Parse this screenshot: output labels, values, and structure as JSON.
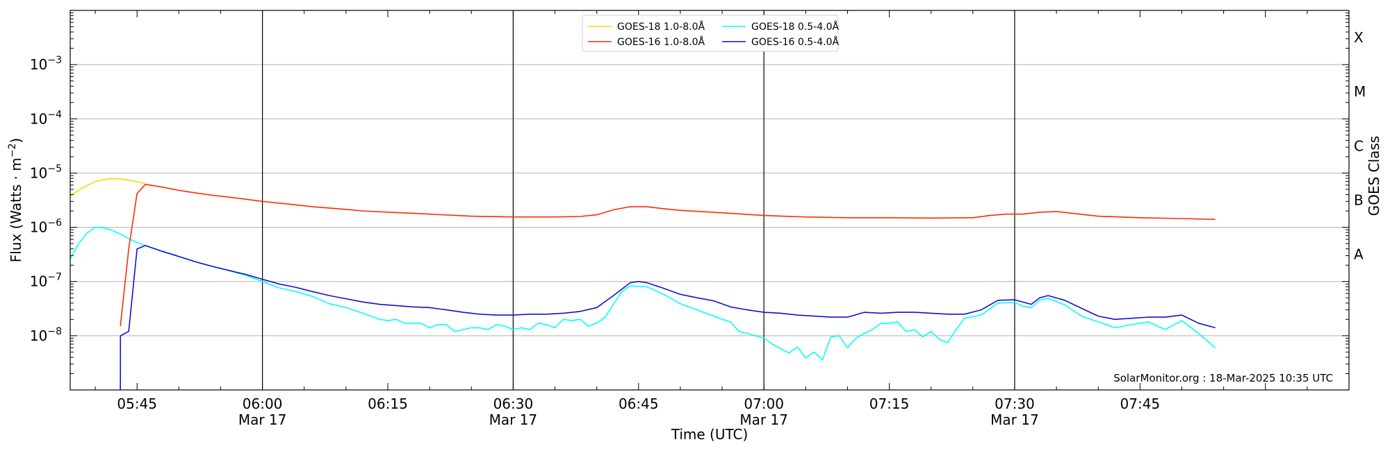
{
  "chart_data": {
    "type": "line",
    "title": "",
    "xlabel": "Time (UTC)",
    "ylabel": "Flux (Watts · m⁻²)",
    "y2label": "GOES Class",
    "yscale": "log",
    "xlim": [
      "05:37",
      "08:10"
    ],
    "ylim": [
      1e-09,
      0.01
    ],
    "grid": "horizontal",
    "legend_position": "top-center",
    "watermark": "SolarMonitor.org : 18-Mar-2025 10:35 UTC",
    "x_ticks": [
      {
        "time": "05:45",
        "label": "05:45",
        "sub": ""
      },
      {
        "time": "06:00",
        "label": "06:00",
        "sub": "Mar 17"
      },
      {
        "time": "06:15",
        "label": "06:15",
        "sub": ""
      },
      {
        "time": "06:30",
        "label": "06:30",
        "sub": "Mar 17"
      },
      {
        "time": "06:45",
        "label": "06:45",
        "sub": ""
      },
      {
        "time": "07:00",
        "label": "07:00",
        "sub": "Mar 17"
      },
      {
        "time": "07:15",
        "label": "07:15",
        "sub": ""
      },
      {
        "time": "07:30",
        "label": "07:30",
        "sub": "Mar 17"
      },
      {
        "time": "07:45",
        "label": "07:45",
        "sub": ""
      }
    ],
    "vertical_lines": [
      "06:00",
      "06:30",
      "07:00",
      "07:30"
    ],
    "y_ticks": [
      {
        "value": 1e-08,
        "base": "10",
        "exp": "−8"
      },
      {
        "value": 1e-07,
        "base": "10",
        "exp": "−7"
      },
      {
        "value": 1e-06,
        "base": "10",
        "exp": "−6"
      },
      {
        "value": 1e-05,
        "base": "10",
        "exp": "−5"
      },
      {
        "value": 0.0001,
        "base": "10",
        "exp": "−4"
      },
      {
        "value": 0.001,
        "base": "10",
        "exp": "−3"
      }
    ],
    "goes_classes": [
      {
        "label": "A",
        "value": 1e-07
      },
      {
        "label": "B",
        "value": 1e-06
      },
      {
        "label": "C",
        "value": 1e-05
      },
      {
        "label": "M",
        "value": 0.0001
      },
      {
        "label": "X",
        "value": 0.001
      }
    ],
    "series": [
      {
        "name": "GOES-18 1.0-8.0Å",
        "color": "#ffd700",
        "points": [
          [
            "05:37",
            3.8e-06
          ],
          [
            "05:38",
            4.8e-06
          ],
          [
            "05:39",
            5.9e-06
          ],
          [
            "05:40",
            6.9e-06
          ],
          [
            "05:41",
            7.6e-06
          ],
          [
            "05:42",
            7.9e-06
          ],
          [
            "05:43",
            7.8e-06
          ],
          [
            "05:44",
            7.4e-06
          ],
          [
            "05:45",
            6.9e-06
          ],
          [
            "05:46",
            6.4e-06
          ]
        ]
      },
      {
        "name": "GOES-18 0.5-4.0Å",
        "color": "#00ffff",
        "points": [
          [
            "05:37",
            2.6e-07
          ],
          [
            "05:38",
            5e-07
          ],
          [
            "05:39",
            7.8e-07
          ],
          [
            "05:40",
            1e-06
          ],
          [
            "05:41",
            9.8e-07
          ],
          [
            "05:42",
            8.8e-07
          ],
          [
            "05:43",
            7.5e-07
          ],
          [
            "05:44",
            6.2e-07
          ],
          [
            "05:45",
            5.2e-07
          ],
          [
            "05:46",
            4.6e-07
          ],
          [
            "05:48",
            3.6e-07
          ],
          [
            "05:50",
            2.9e-07
          ],
          [
            "05:52",
            2.3e-07
          ],
          [
            "05:54",
            1.9e-07
          ],
          [
            "05:56",
            1.6e-07
          ],
          [
            "05:58",
            1.3e-07
          ],
          [
            "06:00",
            1e-07
          ],
          [
            "06:02",
            7.6e-08
          ],
          [
            "06:04",
            6.5e-08
          ],
          [
            "06:06",
            5.3e-08
          ],
          [
            "06:08",
            3.9e-08
          ],
          [
            "06:10",
            3.3e-08
          ],
          [
            "06:12",
            2.6e-08
          ],
          [
            "06:14",
            2e-08
          ],
          [
            "06:15",
            1.9e-08
          ],
          [
            "06:16",
            2e-08
          ],
          [
            "06:17",
            1.7e-08
          ],
          [
            "06:19",
            1.7e-08
          ],
          [
            "06:20",
            1.4e-08
          ],
          [
            "06:21",
            1.6e-08
          ],
          [
            "06:22",
            1.6e-08
          ],
          [
            "06:23",
            1.2e-08
          ],
          [
            "06:24",
            1.3e-08
          ],
          [
            "06:25",
            1.4e-08
          ],
          [
            "06:26",
            1.4e-08
          ],
          [
            "06:27",
            1.3e-08
          ],
          [
            "06:28",
            1.6e-08
          ],
          [
            "06:29",
            1.5e-08
          ],
          [
            "06:30",
            1.3e-08
          ],
          [
            "06:31",
            1.4e-08
          ],
          [
            "06:32",
            1.3e-08
          ],
          [
            "06:33",
            1.7e-08
          ],
          [
            "06:34",
            1.6e-08
          ],
          [
            "06:35",
            1.4e-08
          ],
          [
            "06:36",
            2e-08
          ],
          [
            "06:37",
            1.9e-08
          ],
          [
            "06:38",
            2e-08
          ],
          [
            "06:39",
            1.5e-08
          ],
          [
            "06:40",
            1.7e-08
          ],
          [
            "06:41",
            2.2e-08
          ],
          [
            "06:42",
            3.8e-08
          ],
          [
            "06:43",
            6.5e-08
          ],
          [
            "06:44",
            8.3e-08
          ],
          [
            "06:46",
            8e-08
          ],
          [
            "06:48",
            5.8e-08
          ],
          [
            "06:50",
            3.9e-08
          ],
          [
            "06:52",
            3e-08
          ],
          [
            "06:54",
            2.3e-08
          ],
          [
            "06:55",
            2e-08
          ],
          [
            "06:56",
            1.8e-08
          ],
          [
            "06:57",
            1.2e-08
          ],
          [
            "06:58",
            1.1e-08
          ],
          [
            "07:00",
            9e-09
          ],
          [
            "07:01",
            7e-09
          ],
          [
            "07:02",
            5.8e-09
          ],
          [
            "07:03",
            4.8e-09
          ],
          [
            "07:04",
            6.2e-09
          ],
          [
            "07:05",
            3.9e-09
          ],
          [
            "07:06",
            5e-09
          ],
          [
            "07:07",
            3.6e-09
          ],
          [
            "07:08",
            9.5e-09
          ],
          [
            "07:09",
            1e-08
          ],
          [
            "07:10",
            6e-09
          ],
          [
            "07:11",
            9e-09
          ],
          [
            "07:12",
            1.1e-08
          ],
          [
            "07:13",
            1.3e-08
          ],
          [
            "07:14",
            1.7e-08
          ],
          [
            "07:15",
            1.7e-08
          ],
          [
            "07:16",
            1.8e-08
          ],
          [
            "07:17",
            1.2e-08
          ],
          [
            "07:18",
            1.3e-08
          ],
          [
            "07:19",
            9.5e-09
          ],
          [
            "07:20",
            1.2e-08
          ],
          [
            "07:21",
            8.5e-09
          ],
          [
            "07:22",
            7.5e-09
          ],
          [
            "07:23",
            1.3e-08
          ],
          [
            "07:24",
            2.1e-08
          ],
          [
            "07:26",
            2.4e-08
          ],
          [
            "07:28",
            4e-08
          ],
          [
            "07:30",
            4.1e-08
          ],
          [
            "07:31",
            3.5e-08
          ],
          [
            "07:32",
            3.3e-08
          ],
          [
            "07:33",
            4.5e-08
          ],
          [
            "07:34",
            4.9e-08
          ],
          [
            "07:36",
            3.7e-08
          ],
          [
            "07:38",
            2.3e-08
          ],
          [
            "07:40",
            1.8e-08
          ],
          [
            "07:42",
            1.4e-08
          ],
          [
            "07:44",
            1.6e-08
          ],
          [
            "07:46",
            1.8e-08
          ],
          [
            "07:48",
            1.3e-08
          ],
          [
            "07:50",
            1.9e-08
          ],
          [
            "07:52",
            1.1e-08
          ],
          [
            "07:54",
            6e-09
          ]
        ]
      },
      {
        "name": "GOES-16 1.0-8.0Å",
        "color": "#ff2a00",
        "points": [
          [
            "05:43",
            1.5e-08
          ],
          [
            "05:44",
            4e-07
          ],
          [
            "05:45",
            4.2e-06
          ],
          [
            "05:46",
            6.2e-06
          ],
          [
            "05:48",
            5.5e-06
          ],
          [
            "05:50",
            4.8e-06
          ],
          [
            "05:52",
            4.3e-06
          ],
          [
            "05:54",
            3.9e-06
          ],
          [
            "05:56",
            3.6e-06
          ],
          [
            "05:58",
            3.3e-06
          ],
          [
            "06:00",
            3e-06
          ],
          [
            "06:03",
            2.7e-06
          ],
          [
            "06:06",
            2.4e-06
          ],
          [
            "06:09",
            2.2e-06
          ],
          [
            "06:12",
            2e-06
          ],
          [
            "06:15",
            1.9e-06
          ],
          [
            "06:20",
            1.75e-06
          ],
          [
            "06:25",
            1.6e-06
          ],
          [
            "06:30",
            1.55e-06
          ],
          [
            "06:35",
            1.55e-06
          ],
          [
            "06:38",
            1.58e-06
          ],
          [
            "06:40",
            1.7e-06
          ],
          [
            "06:42",
            2.1e-06
          ],
          [
            "06:44",
            2.4e-06
          ],
          [
            "06:46",
            2.4e-06
          ],
          [
            "06:48",
            2.2e-06
          ],
          [
            "06:50",
            2.05e-06
          ],
          [
            "06:55",
            1.85e-06
          ],
          [
            "07:00",
            1.65e-06
          ],
          [
            "07:05",
            1.55e-06
          ],
          [
            "07:10",
            1.5e-06
          ],
          [
            "07:15",
            1.5e-06
          ],
          [
            "07:20",
            1.48e-06
          ],
          [
            "07:25",
            1.5e-06
          ],
          [
            "07:27",
            1.65e-06
          ],
          [
            "07:29",
            1.75e-06
          ],
          [
            "07:31",
            1.75e-06
          ],
          [
            "07:33",
            1.9e-06
          ],
          [
            "07:35",
            1.95e-06
          ],
          [
            "07:37",
            1.8e-06
          ],
          [
            "07:40",
            1.6e-06
          ],
          [
            "07:45",
            1.5e-06
          ],
          [
            "07:50",
            1.45e-06
          ],
          [
            "07:54",
            1.4e-06
          ]
        ]
      },
      {
        "name": "GOES-16 0.5-4.0Å",
        "color": "#1010cc",
        "points": [
          [
            "05:43",
            1e-09
          ],
          [
            "05:43.01",
            1e-08
          ],
          [
            "05:44",
            1.2e-08
          ],
          [
            "05:45",
            4e-07
          ],
          [
            "05:46",
            4.6e-07
          ],
          [
            "05:48",
            3.6e-07
          ],
          [
            "05:50",
            2.9e-07
          ],
          [
            "05:52",
            2.3e-07
          ],
          [
            "05:54",
            1.9e-07
          ],
          [
            "05:56",
            1.6e-07
          ],
          [
            "05:58",
            1.35e-07
          ],
          [
            "06:00",
            1.1e-07
          ],
          [
            "06:02",
            9e-08
          ],
          [
            "06:04",
            7.8e-08
          ],
          [
            "06:06",
            6.5e-08
          ],
          [
            "06:08",
            5.5e-08
          ],
          [
            "06:10",
            4.8e-08
          ],
          [
            "06:12",
            4.2e-08
          ],
          [
            "06:14",
            3.8e-08
          ],
          [
            "06:16",
            3.6e-08
          ],
          [
            "06:18",
            3.4e-08
          ],
          [
            "06:20",
            3.3e-08
          ],
          [
            "06:22",
            3e-08
          ],
          [
            "06:24",
            2.7e-08
          ],
          [
            "06:26",
            2.5e-08
          ],
          [
            "06:28",
            2.4e-08
          ],
          [
            "06:30",
            2.4e-08
          ],
          [
            "06:32",
            2.5e-08
          ],
          [
            "06:34",
            2.5e-08
          ],
          [
            "06:36",
            2.6e-08
          ],
          [
            "06:38",
            2.8e-08
          ],
          [
            "06:40",
            3.3e-08
          ],
          [
            "06:42",
            5.5e-08
          ],
          [
            "06:44",
            9.5e-08
          ],
          [
            "06:45",
            1e-07
          ],
          [
            "06:46",
            9.5e-08
          ],
          [
            "06:48",
            7.5e-08
          ],
          [
            "06:50",
            5.8e-08
          ],
          [
            "06:52",
            5e-08
          ],
          [
            "06:54",
            4.4e-08
          ],
          [
            "06:56",
            3.4e-08
          ],
          [
            "06:58",
            3e-08
          ],
          [
            "07:00",
            2.7e-08
          ],
          [
            "07:02",
            2.6e-08
          ],
          [
            "07:04",
            2.4e-08
          ],
          [
            "07:06",
            2.3e-08
          ],
          [
            "07:08",
            2.2e-08
          ],
          [
            "07:10",
            2.2e-08
          ],
          [
            "07:12",
            2.7e-08
          ],
          [
            "07:14",
            2.6e-08
          ],
          [
            "07:16",
            2.7e-08
          ],
          [
            "07:18",
            2.7e-08
          ],
          [
            "07:20",
            2.6e-08
          ],
          [
            "07:22",
            2.5e-08
          ],
          [
            "07:24",
            2.5e-08
          ],
          [
            "07:26",
            3e-08
          ],
          [
            "07:28",
            4.5e-08
          ],
          [
            "07:30",
            4.6e-08
          ],
          [
            "07:32",
            3.8e-08
          ],
          [
            "07:33",
            5e-08
          ],
          [
            "07:34",
            5.5e-08
          ],
          [
            "07:36",
            4.5e-08
          ],
          [
            "07:38",
            3.2e-08
          ],
          [
            "07:40",
            2.3e-08
          ],
          [
            "07:42",
            2e-08
          ],
          [
            "07:44",
            2.1e-08
          ],
          [
            "07:46",
            2.2e-08
          ],
          [
            "07:48",
            2.2e-08
          ],
          [
            "07:50",
            2.4e-08
          ],
          [
            "07:52",
            1.7e-08
          ],
          [
            "07:54",
            1.4e-08
          ]
        ]
      }
    ],
    "legend_order": [
      0,
      2,
      1,
      3
    ]
  }
}
